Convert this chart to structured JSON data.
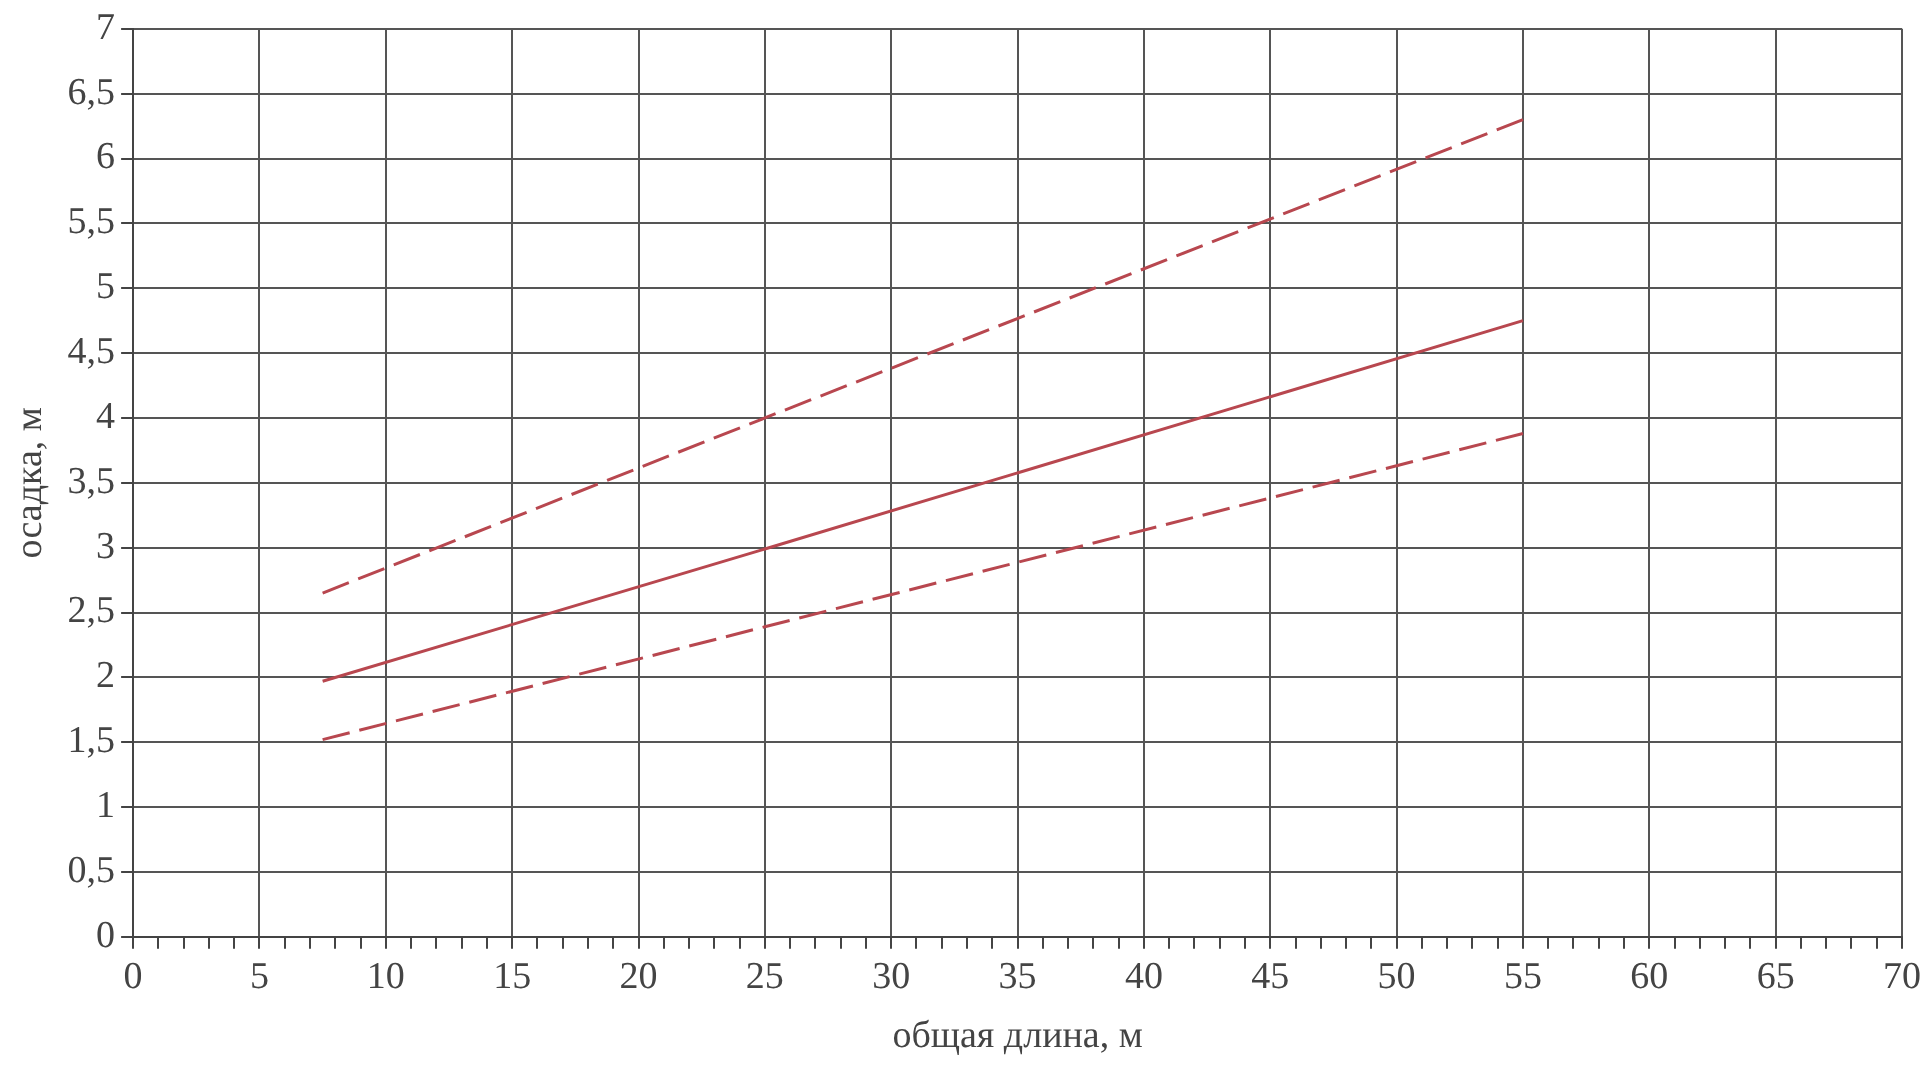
{
  "chart_data": {
    "type": "line",
    "xlabel": "общая длина, м",
    "ylabel": "осадка, м",
    "xlim": [
      0,
      70
    ],
    "xticks": [
      0,
      {
        "value": 1,
        "label": null
      },
      {
        "value": 2,
        "label": null
      },
      {
        "value": 3,
        "label": null
      },
      {
        "value": 4,
        "label": null
      },
      5,
      {
        "value": 6,
        "label": null
      },
      {
        "value": 7,
        "label": null
      },
      {
        "value": 8,
        "label": null
      },
      {
        "value": 9,
        "label": null
      },
      10,
      {
        "value": 11,
        "label": null
      },
      {
        "value": 12,
        "label": null
      },
      {
        "value": 13,
        "label": null
      },
      {
        "value": 14,
        "label": null
      },
      15,
      {
        "value": 16,
        "label": null
      },
      {
        "value": 17,
        "label": null
      },
      {
        "value": 18,
        "label": null
      },
      {
        "value": 19,
        "label": null
      },
      20,
      {
        "value": 21,
        "label": null
      },
      {
        "value": 22,
        "label": null
      },
      {
        "value": 23,
        "label": null
      },
      {
        "value": 24,
        "label": null
      },
      25,
      {
        "value": 26,
        "label": null
      },
      {
        "value": 27,
        "label": null
      },
      {
        "value": 28,
        "label": null
      },
      {
        "value": 29,
        "label": null
      },
      30,
      {
        "value": 31,
        "label": null
      },
      {
        "value": 32,
        "label": null
      },
      {
        "value": 33,
        "label": null
      },
      {
        "value": 34,
        "label": null
      },
      35,
      {
        "value": 36,
        "label": null
      },
      {
        "value": 37,
        "label": null
      },
      {
        "value": 38,
        "label": null
      },
      {
        "value": 39,
        "label": null
      },
      40,
      {
        "value": 41,
        "label": null
      },
      {
        "value": 42,
        "label": null
      },
      {
        "value": 43,
        "label": null
      },
      {
        "value": 44,
        "label": null
      },
      45,
      {
        "value": 46,
        "label": null
      },
      {
        "value": 47,
        "label": null
      },
      {
        "value": 48,
        "label": null
      },
      {
        "value": 49,
        "label": null
      },
      50,
      {
        "value": 51,
        "label": null
      },
      {
        "value": 52,
        "label": null
      },
      {
        "value": 53,
        "label": null
      },
      {
        "value": 54,
        "label": null
      },
      55,
      {
        "value": 56,
        "label": null
      },
      {
        "value": 57,
        "label": null
      },
      {
        "value": 58,
        "label": null
      },
      {
        "value": 59,
        "label": null
      },
      60,
      {
        "value": 61,
        "label": null
      },
      {
        "value": 62,
        "label": null
      },
      {
        "value": 63,
        "label": null
      },
      {
        "value": 64,
        "label": null
      },
      65,
      {
        "value": 66,
        "label": null
      },
      {
        "value": 67,
        "label": null
      },
      {
        "value": 68,
        "label": null
      },
      {
        "value": 69,
        "label": null
      },
      70
    ],
    "ylim": [
      0,
      7
    ],
    "yticks": [
      0,
      {
        "value": 0.5,
        "label": "0,5"
      },
      1,
      {
        "value": 1.5,
        "label": "1,5"
      },
      2,
      {
        "value": 2.5,
        "label": "2,5"
      },
      3,
      {
        "value": 3.5,
        "label": "3,5"
      },
      4,
      {
        "value": 4.5,
        "label": "4,5"
      },
      5,
      {
        "value": 5.5,
        "label": "5,5"
      },
      6,
      {
        "value": 6.5,
        "label": "6,5"
      },
      7
    ],
    "grid": true,
    "legend": false,
    "marker": "none",
    "series": [
      {
        "color": "#b8474f",
        "line_style": "dashed",
        "x": [
          7.5,
          25,
          55
        ],
        "values": [
          2.65,
          4.0,
          6.3
        ]
      },
      {
        "color": "#b8474f",
        "line_style": "solid",
        "x": [
          7.5,
          25,
          55
        ],
        "values": [
          1.97,
          2.99,
          4.75
        ]
      },
      {
        "color": "#b8474f",
        "line_style": "dashed",
        "x": [
          7.5,
          25,
          55
        ],
        "values": [
          1.52,
          2.39,
          3.88
        ]
      }
    ]
  }
}
